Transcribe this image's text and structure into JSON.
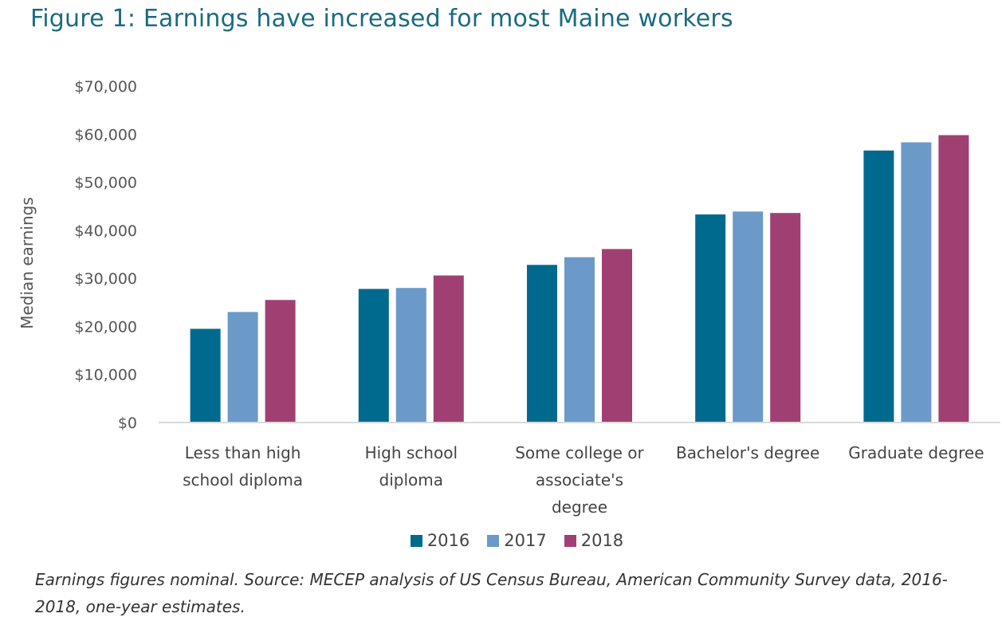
{
  "title": "Figure 1: Earnings have increased for most Maine workers",
  "note": "Earnings figures nominal. Source: MECEP analysis of US Census Bureau, American Community Survey data, 2016-2018, one-year estimates.",
  "chart_data": {
    "type": "bar",
    "ylabel": "Median earnings",
    "xlabel": "",
    "ylim": [
      0,
      70000
    ],
    "yticks": [
      "$0",
      "$10,000",
      "$20,000",
      "$30,000",
      "$40,000",
      "$50,000",
      "$60,000",
      "$70,000"
    ],
    "grid": false,
    "legend_position": "bottom",
    "categories": [
      [
        "Less than high",
        "school diploma"
      ],
      [
        "High school",
        "diploma"
      ],
      [
        "Some college or",
        "associate's",
        "degree"
      ],
      [
        "Bachelor's degree"
      ],
      [
        "Graduate degree"
      ]
    ],
    "series": [
      {
        "name": "2016",
        "color": "#006a8e",
        "values": [
          19500,
          27800,
          32800,
          43300,
          56600
        ]
      },
      {
        "name": "2017",
        "color": "#6b9ac8",
        "values": [
          23000,
          28000,
          34400,
          43900,
          58300
        ]
      },
      {
        "name": "2018",
        "color": "#a04072",
        "values": [
          25500,
          30600,
          36100,
          43600,
          59800
        ]
      }
    ]
  }
}
